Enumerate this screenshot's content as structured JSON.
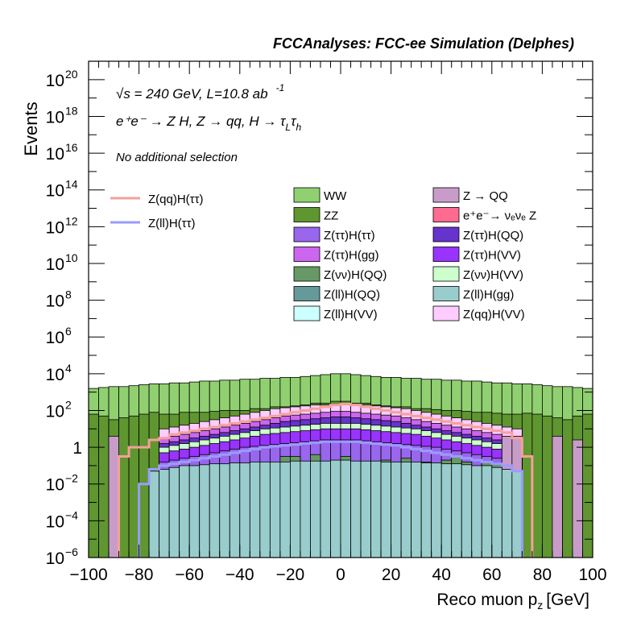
{
  "chart_data": {
    "type": "area",
    "header": "FCCAnalyses: FCC-ee Simulation (Delphes)",
    "xlabel": "Reco muon p",
    "xlabel_sub": "z",
    "xlabel_unit": "[GeV]",
    "ylabel": "Events",
    "xlim": [
      -100,
      100
    ],
    "ylim_log10": [
      -6,
      21
    ],
    "log_y": true,
    "x_ticks": [
      {
        "v": -100,
        "label": "−100"
      },
      {
        "v": -80,
        "label": "−80"
      },
      {
        "v": -60,
        "label": "−60"
      },
      {
        "v": -40,
        "label": "−40"
      },
      {
        "v": -20,
        "label": "−20"
      },
      {
        "v": 0,
        "label": "0"
      },
      {
        "v": 20,
        "label": "20"
      },
      {
        "v": 40,
        "label": "40"
      },
      {
        "v": 60,
        "label": "60"
      },
      {
        "v": 80,
        "label": "80"
      },
      {
        "v": 100,
        "label": "100"
      }
    ],
    "y_ticks": [
      {
        "exp": -6,
        "base": "10",
        "sup": "−6"
      },
      {
        "exp": -4,
        "base": "10",
        "sup": "−4"
      },
      {
        "exp": -2,
        "base": "10",
        "sup": "−2"
      },
      {
        "exp": 0,
        "base": "1",
        "sup": ""
      },
      {
        "exp": 2,
        "base": "10",
        "sup": "2"
      },
      {
        "exp": 4,
        "base": "10",
        "sup": "4"
      },
      {
        "exp": 6,
        "base": "10",
        "sup": "6"
      },
      {
        "exp": 8,
        "base": "10",
        "sup": "8"
      },
      {
        "exp": 10,
        "base": "10",
        "sup": "10"
      },
      {
        "exp": 12,
        "base": "10",
        "sup": "12"
      },
      {
        "exp": 14,
        "base": "10",
        "sup": "14"
      },
      {
        "exp": 16,
        "base": "10",
        "sup": "16"
      },
      {
        "exp": 18,
        "base": "10",
        "sup": "18"
      },
      {
        "exp": 20,
        "base": "10",
        "sup": "20"
      }
    ],
    "annotations": {
      "line1": "√s = 240 GeV, L=10.8 ab",
      "line1_sup": "-1",
      "line2": "e⁺e⁻ → Z H, Z → qq, H → τ",
      "line2_sub1": "L",
      "line2_mid": "τ",
      "line2_sub2": "h",
      "line3": "No additional selection"
    },
    "legend_placement": "upper-middle",
    "signal_legend": [
      {
        "name": "Z(qq)H(ττ)",
        "color": "#f4a09c"
      },
      {
        "name": "Z(ll)H(ττ)",
        "color": "#9b9bff"
      }
    ],
    "background_legend": [
      {
        "name": "WW",
        "color": "#90d070"
      },
      {
        "name": "Z → QQ",
        "color": "#c89cc8"
      },
      {
        "name": "ZZ",
        "color": "#5f9630"
      },
      {
        "name": "e⁺e⁻→ νₑνₑ Z",
        "color": "#ff6a90"
      },
      {
        "name": "Z(ττ)H(ττ)",
        "color": "#9966ee"
      },
      {
        "name": "Z(ττ)H(QQ)",
        "color": "#6633cc"
      },
      {
        "name": "Z(ττ)H(gg)",
        "color": "#cc66ee"
      },
      {
        "name": "Z(ττ)H(VV)",
        "color": "#9933ff"
      },
      {
        "name": "Z(νν)H(QQ)",
        "color": "#669966"
      },
      {
        "name": "Z(νν)H(VV)",
        "color": "#ccffcc"
      },
      {
        "name": "Z(ll)H(QQ)",
        "color": "#669999"
      },
      {
        "name": "Z(ll)H(gg)",
        "color": "#99cccc"
      },
      {
        "name": "Z(ll)H(VV)",
        "color": "#ccffff"
      },
      {
        "name": "Z(qq)H(VV)",
        "color": "#ffccff"
      }
    ],
    "bin_edges": [
      -100,
      -96,
      -92,
      -88,
      -84,
      -80,
      -76,
      -72,
      -68,
      -64,
      -60,
      -56,
      -52,
      -48,
      -44,
      -40,
      -36,
      -32,
      -28,
      -24,
      -20,
      -16,
      -12,
      -8,
      -4,
      0,
      4,
      8,
      12,
      16,
      20,
      24,
      28,
      32,
      36,
      40,
      44,
      48,
      52,
      56,
      60,
      64,
      68,
      72,
      76,
      80,
      84,
      88,
      92,
      96,
      100
    ],
    "stack_layers_log10": [
      {
        "name": "WW",
        "color": "#90d070",
        "values": [
          3.2,
          3.25,
          3.3,
          3.3,
          3.35,
          3.4,
          3.45,
          3.45,
          3.5,
          3.5,
          3.55,
          3.6,
          3.6,
          3.65,
          3.65,
          3.7,
          3.7,
          3.75,
          3.75,
          3.8,
          3.8,
          3.85,
          3.9,
          3.95,
          4.0,
          4.0,
          3.95,
          3.9,
          3.85,
          3.8,
          3.8,
          3.75,
          3.75,
          3.7,
          3.7,
          3.65,
          3.65,
          3.6,
          3.6,
          3.55,
          3.5,
          3.5,
          3.45,
          3.45,
          3.4,
          3.35,
          3.3,
          3.3,
          3.25,
          3.2
        ]
      },
      {
        "name": "ZZ",
        "color": "#5f9630",
        "values": [
          1.8,
          1.7,
          1.5,
          1.6,
          1.7,
          1.8,
          1.9,
          1.8,
          1.8,
          1.9,
          1.9,
          1.9,
          1.95,
          2.0,
          2.0,
          2.0,
          2.1,
          2.1,
          2.2,
          2.2,
          2.25,
          2.3,
          2.4,
          2.4,
          2.5,
          2.5,
          2.4,
          2.4,
          2.3,
          2.25,
          2.2,
          2.2,
          2.1,
          2.1,
          2.05,
          2.0,
          2.0,
          1.95,
          1.9,
          1.9,
          1.85,
          1.8,
          1.8,
          1.85,
          1.8,
          1.7,
          1.6,
          1.5,
          1.7,
          1.8
        ]
      },
      {
        "name": "Z(qq)H(VV)",
        "color": "#ffccff",
        "values": [
          -9,
          -9,
          -9,
          -9,
          -9,
          -9,
          -9,
          1.0,
          1.1,
          1.2,
          1.3,
          1.4,
          1.5,
          1.6,
          1.7,
          1.8,
          1.9,
          2.0,
          2.1,
          2.15,
          2.2,
          2.25,
          2.3,
          2.3,
          2.35,
          2.35,
          2.3,
          2.3,
          2.25,
          2.2,
          2.15,
          2.1,
          2.0,
          1.9,
          1.8,
          1.7,
          1.6,
          1.5,
          1.4,
          1.3,
          1.2,
          1.1,
          1.0,
          -9,
          -9,
          -9,
          -9,
          -9,
          -9,
          -9
        ]
      },
      {
        "name": "Z(ττ)H(gg)",
        "color": "#cc66ee",
        "values": [
          -9,
          -9,
          -9,
          -9,
          -9,
          -9,
          -9,
          0.5,
          0.6,
          0.7,
          0.8,
          0.9,
          1.0,
          1.1,
          1.2,
          1.3,
          1.4,
          1.5,
          1.6,
          1.7,
          1.75,
          1.8,
          1.85,
          1.9,
          1.95,
          1.95,
          1.9,
          1.85,
          1.8,
          1.75,
          1.7,
          1.6,
          1.5,
          1.4,
          1.3,
          1.2,
          1.1,
          1.0,
          0.9,
          0.8,
          0.7,
          0.6,
          0.5,
          -9,
          -9,
          -9,
          -9,
          -9,
          -9,
          -9
        ]
      },
      {
        "name": "Z(ττ)H(QQ)",
        "color": "#6633cc",
        "values": [
          -9,
          -9,
          -9,
          -9,
          -9,
          -9,
          -9,
          0.2,
          0.3,
          0.4,
          0.5,
          0.6,
          0.7,
          0.8,
          0.9,
          1.0,
          1.1,
          1.2,
          1.3,
          1.4,
          1.45,
          1.5,
          1.55,
          1.6,
          1.65,
          1.65,
          1.6,
          1.55,
          1.5,
          1.45,
          1.4,
          1.3,
          1.2,
          1.1,
          1.0,
          0.9,
          0.8,
          0.7,
          0.6,
          0.5,
          0.4,
          0.3,
          0.2,
          -9,
          -9,
          -9,
          -9,
          -9,
          -9,
          -9
        ]
      },
      {
        "name": "Z(νν)H(VV)",
        "color": "#ccffcc",
        "values": [
          -9,
          -9,
          -9,
          -9,
          -9,
          -9,
          -9,
          0.0,
          0.1,
          0.2,
          0.3,
          0.4,
          0.5,
          0.6,
          0.7,
          0.8,
          0.9,
          1.0,
          1.05,
          1.1,
          1.15,
          1.2,
          1.25,
          1.3,
          1.3,
          1.3,
          1.3,
          1.25,
          1.2,
          1.15,
          1.1,
          1.05,
          1.0,
          0.9,
          0.8,
          0.7,
          0.6,
          0.5,
          0.4,
          0.3,
          0.2,
          0.1,
          0.0,
          -9,
          -9,
          -9,
          -9,
          -9,
          -9,
          -9
        ]
      },
      {
        "name": "Z(ττ)H(VV)",
        "color": "#9933ff",
        "values": [
          -9,
          -9,
          -9,
          -9,
          -9,
          -9,
          -9,
          -0.3,
          -0.2,
          -0.1,
          0.0,
          0.1,
          0.2,
          0.3,
          0.4,
          0.5,
          0.6,
          0.7,
          0.75,
          0.8,
          0.85,
          0.9,
          0.95,
          1.0,
          1.0,
          1.0,
          1.0,
          0.95,
          0.9,
          0.85,
          0.8,
          0.75,
          0.7,
          0.6,
          0.5,
          0.4,
          0.3,
          0.2,
          0.1,
          0.0,
          -0.1,
          -0.2,
          -0.3,
          -9,
          -9,
          -9,
          -9,
          -9,
          -9,
          -9
        ]
      },
      {
        "name": "Z(ττ)H(ττ)",
        "color": "#9966ee",
        "values": [
          -9,
          -9,
          -9,
          -9,
          -9,
          -9,
          -9,
          -0.8,
          -0.7,
          -0.6,
          -0.5,
          -0.4,
          -0.3,
          -0.2,
          -0.1,
          0.0,
          0.05,
          0.1,
          0.15,
          0.2,
          0.25,
          0.3,
          0.35,
          0.4,
          0.4,
          0.4,
          0.4,
          0.35,
          0.3,
          0.25,
          0.2,
          0.15,
          0.1,
          0.05,
          0.0,
          -0.1,
          -0.2,
          -0.3,
          -0.4,
          -0.5,
          -0.6,
          -0.7,
          -0.8,
          -9,
          -9,
          -9,
          -9,
          -9,
          -9,
          -9
        ]
      },
      {
        "name": "Z(νν)H(QQ)",
        "color": "#669966",
        "values": [
          -9,
          -9,
          -9,
          -9,
          -9,
          -9,
          -9,
          -9,
          -9,
          -9,
          -1.0,
          -9,
          -1.0,
          -1.0,
          -9,
          -1.0,
          -9,
          -1.0,
          -9,
          -0.5,
          -0.5,
          -1.0,
          -0.4,
          -1.0,
          -1.0,
          -0.5,
          -1.0,
          -0.8,
          -1.0,
          -0.7,
          -0.8,
          -0.6,
          -1.0,
          -0.8,
          -1.0,
          -0.7,
          -0.5,
          -0.8,
          -1.0,
          -0.8,
          -0.9,
          -1.0,
          -9,
          -9,
          -9,
          -9,
          -9,
          -9,
          -9,
          -9
        ]
      },
      {
        "name": "Z → QQ",
        "color": "#c89cc8",
        "values": [
          -9,
          -9,
          0.6,
          -6,
          -6,
          -9,
          -9,
          -9,
          -9,
          -9,
          -9,
          -9,
          -9,
          -9,
          -9,
          -9,
          -9,
          -9,
          -9,
          -9,
          -9,
          -9,
          -9,
          -9,
          -9,
          -9,
          -9,
          -9,
          -9,
          -9,
          -9,
          -9,
          -9,
          -9,
          -9,
          -9,
          -9,
          -9,
          -9,
          -9,
          -9,
          0.6,
          0.6,
          -9,
          -9,
          -9,
          0.6,
          -9,
          0.4,
          -9
        ]
      },
      {
        "name": "e⁺e⁻→ νₑνₑ Z",
        "color": "#ff6a90",
        "values": [
          -9,
          -9,
          -9,
          -9,
          -9,
          -9,
          -9,
          -9,
          -9,
          -9,
          -9,
          -9,
          -9,
          -9,
          -9,
          -9,
          -9,
          -9,
          -9,
          -9,
          -9,
          -9,
          -1.0,
          -9,
          -9,
          -9,
          -9,
          -9,
          -9,
          -1.4,
          -1.4,
          -1.4,
          -1.4,
          -9,
          -9,
          -9,
          -9,
          -9,
          -9,
          -9,
          -9,
          -9,
          -9,
          -9,
          -9,
          -9,
          -9,
          -9,
          -9,
          -9
        ]
      },
      {
        "name": "Z(ll)H(gg)",
        "color": "#99cccc",
        "values": [
          -9,
          -9,
          -9,
          -9,
          -9,
          -9,
          -1.3,
          -1.2,
          -1.1,
          -1.0,
          -1.0,
          -0.95,
          -0.9,
          -0.9,
          -0.85,
          -0.85,
          -0.8,
          -0.8,
          -0.8,
          -0.8,
          -0.75,
          -0.75,
          -0.75,
          -0.75,
          -0.7,
          -0.7,
          -0.75,
          -0.75,
          -0.75,
          -0.8,
          -0.8,
          -0.8,
          -0.8,
          -0.85,
          -0.85,
          -0.9,
          -0.9,
          -0.95,
          -1.0,
          -1.0,
          -1.1,
          -1.2,
          -1.3,
          -9,
          -9,
          -9,
          -9,
          -9,
          -9,
          -9
        ]
      }
    ],
    "signal_lines_log10": [
      {
        "name": "Z(qq)H(ττ)",
        "color": "#f4a09c",
        "values": [
          -9,
          -9,
          -9,
          -0.5,
          0.0,
          0.0,
          0.4,
          0.5,
          0.7,
          0.8,
          0.9,
          1.0,
          1.1,
          1.2,
          1.3,
          1.4,
          1.5,
          1.6,
          1.7,
          1.8,
          1.9,
          2.0,
          2.1,
          2.2,
          2.3,
          2.35,
          2.3,
          2.2,
          2.1,
          2.0,
          1.9,
          1.8,
          1.7,
          1.6,
          1.5,
          1.4,
          1.3,
          1.2,
          1.1,
          1.0,
          0.9,
          0.8,
          0.5,
          -0.5,
          -9,
          -9,
          -9,
          -9,
          -9,
          -9
        ]
      },
      {
        "name": "Z(ll)H(ττ)",
        "color": "#9b9bff",
        "values": [
          -9,
          -9,
          -9,
          -9,
          -9,
          -2.0,
          -1.2,
          -1.0,
          -0.9,
          -0.8,
          -0.7,
          -0.6,
          -0.5,
          -0.4,
          -0.3,
          -0.2,
          -0.1,
          0.0,
          0.05,
          0.1,
          0.15,
          0.2,
          0.25,
          0.3,
          0.3,
          0.3,
          0.3,
          0.25,
          0.2,
          0.15,
          0.1,
          0.0,
          -0.1,
          -0.2,
          -0.3,
          -0.4,
          -0.5,
          -0.6,
          -0.7,
          -0.8,
          -0.9,
          -1.0,
          -1.3,
          -9,
          -9,
          -9,
          -9,
          -9,
          -9,
          -9
        ]
      }
    ]
  }
}
